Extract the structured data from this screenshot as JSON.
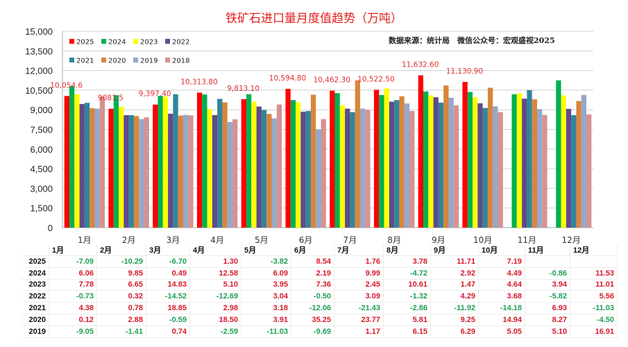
{
  "title": "铁矿石进口量月度值趋势（万吨）",
  "source": "数据来源：统计局　微信公众号：宏观盛视2025",
  "colors": {
    "2025": "#ff0000",
    "2024": "#00b050",
    "2023": "#ffff00",
    "2022": "#5f4b8b",
    "2021": "#31859c",
    "2020": "#d9853b",
    "2019": "#95a8cc",
    "2018": "#d49391",
    "positive": "#d7182a",
    "negative": "#1f9f55"
  },
  "chart_data": {
    "type": "bar",
    "title": "铁矿石进口量月度值趋势（万吨）",
    "categories": [
      "1月",
      "2月",
      "3月",
      "4月",
      "5月",
      "6月",
      "7月",
      "8月",
      "9月",
      "10月",
      "11月",
      "12月"
    ],
    "ylim": [
      0,
      15000
    ],
    "yticks": [
      "0",
      "1,500",
      "3,000",
      "4,500",
      "6,000",
      "7,500",
      "9,000",
      "10,500",
      "12,000",
      "13,500",
      "15,000"
    ],
    "grid": true,
    "legend": "top-left",
    "series": [
      {
        "name": "2025",
        "values": [
          10054.6,
          9081.5,
          9397.4,
          10313.8,
          9813.1,
          10594.8,
          10462.3,
          10522.5,
          11632.6,
          11130.9,
          null,
          null
        ]
      },
      {
        "name": "2024",
        "values": [
          10805,
          10115,
          10062,
          10168,
          10186,
          9743,
          10274,
          10133,
          10398,
          10363,
          10186,
          11248
        ]
      },
      {
        "name": "2023",
        "values": [
          10186,
          9230,
          10009,
          9053,
          9620,
          9566,
          9336,
          10628,
          10097,
          9956,
          10257,
          10097
        ]
      },
      {
        "name": "2022",
        "values": [
          9442,
          8593,
          8699,
          8593,
          9248,
          8858,
          9088,
          9620,
          9956,
          9496,
          9850,
          9071
        ]
      },
      {
        "name": "2021",
        "values": [
          9531,
          8593,
          10186,
          9832,
          8982,
          8911,
          8823,
          9743,
          9549,
          9142,
          10505,
          8593
        ]
      },
      {
        "name": "2020",
        "values": [
          9124,
          8522,
          8557,
          9566,
          8681,
          10150,
          11248,
          10027,
          10859,
          10682,
          9797,
          9673
        ]
      },
      {
        "name": "2019",
        "values": [
          9088,
          8292,
          8610,
          8062,
          8345,
          7495,
          9088,
          9478,
          9920,
          9265,
          9053,
          10133
        ]
      },
      {
        "name": "2018",
        "values": [
          10009,
          8416,
          8575,
          8274,
          9407,
          8292,
          8982,
          8911,
          9336,
          8823,
          8610,
          8646
        ]
      }
    ],
    "data_labels": [
      "10,054.6",
      "9081.5",
      "9,397.40",
      "10,313.80",
      "9,813.10",
      "10,594.80",
      "10,462.30",
      "10,522.50",
      "11,632.60",
      "11,130.90"
    ]
  },
  "table": {
    "headers": [
      "1月",
      "2月",
      "3月",
      "4月",
      "5月",
      "6月",
      "7月",
      "8月",
      "9月",
      "10月",
      "11月",
      "12月"
    ],
    "rows": [
      {
        "year": "2025",
        "values": [
          "-7.09",
          "-10.29",
          "-6.70",
          "1.30",
          "-3.82",
          "8.54",
          "1.76",
          "3.78",
          "11.71",
          "7.19",
          "",
          ""
        ]
      },
      {
        "year": "2024",
        "values": [
          "6.06",
          "9.85",
          "0.49",
          "12.58",
          "6.09",
          "2.19",
          "9.99",
          "-4.72",
          "2.92",
          "4.49",
          "-0.86",
          "11.53"
        ]
      },
      {
        "year": "2023",
        "values": [
          "7.78",
          "6.65",
          "14.83",
          "5.10",
          "3.95",
          "7.36",
          "2.45",
          "10.61",
          "1.47",
          "4.64",
          "3.94",
          "11.01"
        ]
      },
      {
        "year": "2022",
        "values": [
          "-0.73",
          "0.32",
          "-14.52",
          "-12.69",
          "3.04",
          "-0.50",
          "3.09",
          "-1.32",
          "4.29",
          "3.68",
          "-5.82",
          "5.56"
        ]
      },
      {
        "year": "2021",
        "values": [
          "4.38",
          "0.78",
          "18.85",
          "2.98",
          "3.18",
          "-12.06",
          "-21.43",
          "-2.86",
          "-11.92",
          "-14.18",
          "6.93",
          "-11.03"
        ]
      },
      {
        "year": "2020",
        "values": [
          "0.12",
          "2.88",
          "-0.59",
          "18.50",
          "3.91",
          "35.25",
          "23.77",
          "5.81",
          "9.25",
          "14.94",
          "8.27",
          "-4.50"
        ]
      },
      {
        "year": "2019",
        "values": [
          "-9.05",
          "-1.41",
          "0.74",
          "-2.59",
          "-11.03",
          "-9.69",
          "1.17",
          "6.15",
          "6.29",
          "5.05",
          "5.10",
          "16.91"
        ]
      }
    ]
  }
}
